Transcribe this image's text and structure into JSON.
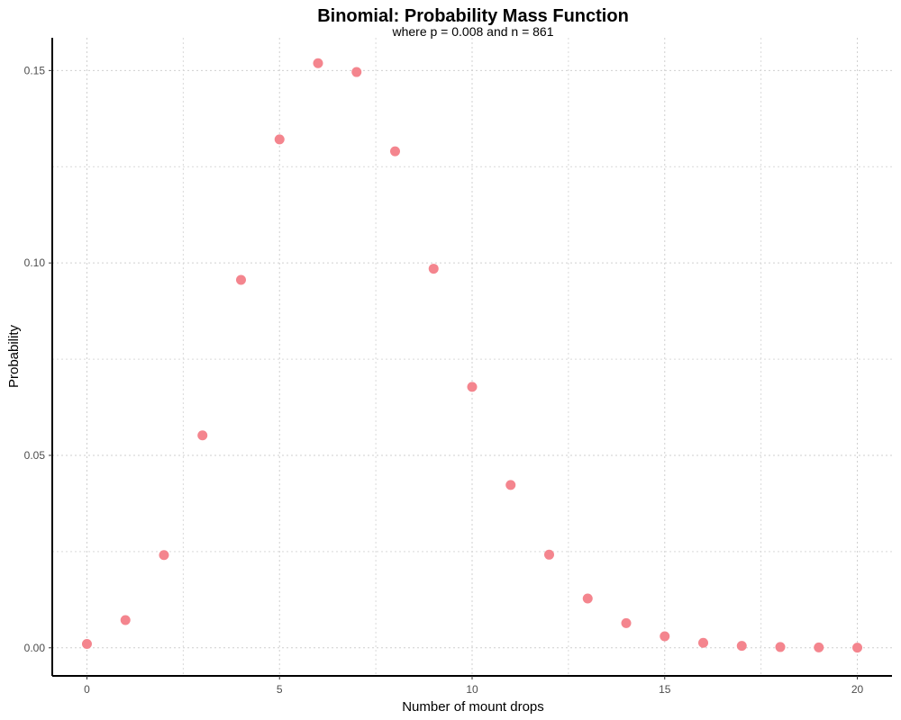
{
  "colors": {
    "point": "#f4858e",
    "axis": "#000000",
    "grid": "#cfcfcf"
  },
  "chart_data": {
    "type": "scatter",
    "title": "Binomial: Probability Mass Function",
    "subtitle": "where p = 0.008 and n = 861",
    "xlabel": "Number of mount drops",
    "ylabel": "Probability",
    "xlim": [
      -0.9,
      20.9
    ],
    "ylim": [
      -0.0073,
      0.1585
    ],
    "x_ticks": [
      0,
      5,
      10,
      15,
      20
    ],
    "x_tick_labels": [
      "0",
      "5",
      "10",
      "15",
      "20"
    ],
    "y_ticks": [
      0,
      0.05,
      0.1,
      0.15
    ],
    "y_tick_labels": [
      "0.00",
      "0.05",
      "0.10",
      "0.15"
    ],
    "grid": true,
    "legend": "none",
    "x": [
      0,
      1,
      2,
      3,
      4,
      5,
      6,
      7,
      8,
      9,
      10,
      11,
      12,
      13,
      14,
      15,
      16,
      17,
      18,
      19,
      20
    ],
    "y": [
      0.001,
      0.0072,
      0.0241,
      0.0552,
      0.0956,
      0.1321,
      0.1519,
      0.1496,
      0.129,
      0.0985,
      0.0678,
      0.0423,
      0.0242,
      0.0128,
      0.0064,
      0.003,
      0.0013,
      0.0005,
      0.0002,
      0.0001,
      3e-05
    ]
  }
}
